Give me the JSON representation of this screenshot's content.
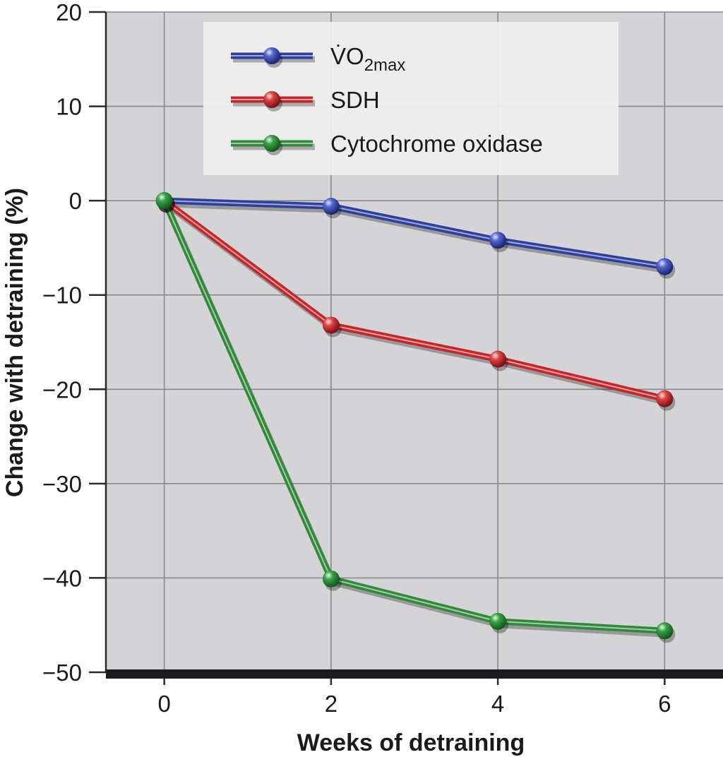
{
  "chart_data": {
    "type": "line",
    "title": "",
    "xlabel": "Weeks of detraining",
    "ylabel": "Change with detraining (%)",
    "x": [
      0,
      2,
      4,
      6
    ],
    "xticks": [
      0,
      2,
      4,
      6
    ],
    "yticks": [
      20,
      10,
      0,
      -10,
      -20,
      -30,
      -40,
      -50
    ],
    "xlim": [
      -0.7,
      6.7
    ],
    "ylim": [
      -50,
      20
    ],
    "grid": true,
    "legend_position": "top-center",
    "series": [
      {
        "name": "VO2max",
        "legend_main": "V̇O",
        "legend_sub": "2max",
        "color": "#2f3f9e",
        "values": [
          0,
          -0.6,
          -4.2,
          -7.0
        ]
      },
      {
        "name": "SDH",
        "legend_main": "SDH",
        "legend_sub": "",
        "color": "#c4272b",
        "values": [
          0,
          -13.2,
          -16.8,
          -21.0
        ]
      },
      {
        "name": "Cytochrome oxidase",
        "legend_main": "Cytochrome oxidase",
        "legend_sub": "",
        "color": "#2f8a3a",
        "values": [
          0,
          -40.1,
          -44.6,
          -45.6
        ]
      }
    ]
  }
}
